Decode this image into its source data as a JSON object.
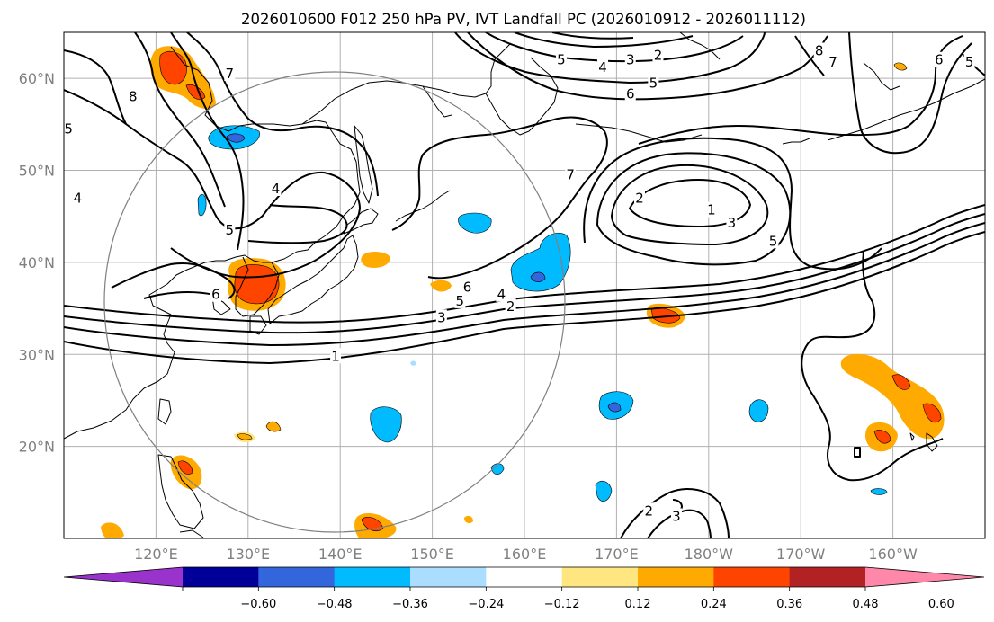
{
  "title": "2026010600 F012 250 hPa PV, IVT Landfall PC (2026010912 - 2026011112)",
  "lat_labels": [
    {
      "lat": 60,
      "text": "60°N"
    },
    {
      "lat": 50,
      "text": "50°N"
    },
    {
      "lat": 40,
      "text": "40°N"
    },
    {
      "lat": 30,
      "text": "30°N"
    },
    {
      "lat": 20,
      "text": "20°N"
    }
  ],
  "lon_labels": [
    {
      "lon": 120,
      "text": "120°E"
    },
    {
      "lon": 130,
      "text": "130°E"
    },
    {
      "lon": 140,
      "text": "140°E"
    },
    {
      "lon": 150,
      "text": "150°E"
    },
    {
      "lon": 160,
      "text": "160°E"
    },
    {
      "lon": 170,
      "text": "170°E"
    },
    {
      "lon": 180,
      "text": "180°W"
    },
    {
      "lon": 190,
      "text": "170°W"
    },
    {
      "lon": 200,
      "text": "160°W"
    }
  ],
  "extent": {
    "lon_min": 110,
    "lon_max": 210,
    "lat_min": 10,
    "lat_max": 65
  },
  "colorbar": {
    "colors": [
      "#9933cc",
      "#000099",
      "#3366dd",
      "#00bbff",
      "#aaddff",
      "#ffffff",
      "#ffe680",
      "#ffaa00",
      "#ff4400",
      "#b22222",
      "#ff88aa"
    ],
    "tick_labels": [
      "−0.60",
      "−0.48",
      "−0.36",
      "−0.24",
      "−0.12",
      "0.12",
      "0.24",
      "0.36",
      "0.48",
      "0.60"
    ]
  },
  "pv_contour_labels": [
    {
      "text": "8",
      "lon": 117.5,
      "lat": 58
    },
    {
      "text": "7",
      "lon": 128,
      "lat": 60.5
    },
    {
      "text": "5",
      "lon": 110.5,
      "lat": 54.5
    },
    {
      "text": "4",
      "lon": 111.5,
      "lat": 47
    },
    {
      "text": "4",
      "lon": 133,
      "lat": 48
    },
    {
      "text": "5",
      "lon": 128,
      "lat": 43.5
    },
    {
      "text": "6",
      "lon": 126.5,
      "lat": 36.5
    },
    {
      "text": "1",
      "lon": 139.5,
      "lat": 29.8
    },
    {
      "text": "3",
      "lon": 151,
      "lat": 34
    },
    {
      "text": "5",
      "lon": 153,
      "lat": 35.8
    },
    {
      "text": "6",
      "lon": 153.8,
      "lat": 37.3
    },
    {
      "text": "4",
      "lon": 157.5,
      "lat": 36.5
    },
    {
      "text": "2",
      "lon": 158.5,
      "lat": 35.2
    },
    {
      "text": "7",
      "lon": 165,
      "lat": 49.5
    },
    {
      "text": "2",
      "lon": 172.5,
      "lat": 47
    },
    {
      "text": "1",
      "lon": 180.3,
      "lat": 45.7
    },
    {
      "text": "3",
      "lon": 182.5,
      "lat": 44.3
    },
    {
      "text": "5",
      "lon": 187,
      "lat": 42.3
    },
    {
      "text": "5",
      "lon": 164,
      "lat": 62
    },
    {
      "text": "4",
      "lon": 168.5,
      "lat": 61.2
    },
    {
      "text": "3",
      "lon": 171.5,
      "lat": 62
    },
    {
      "text": "2",
      "lon": 174.5,
      "lat": 62.5
    },
    {
      "text": "5",
      "lon": 174,
      "lat": 59.5
    },
    {
      "text": "6",
      "lon": 171.5,
      "lat": 58.3
    },
    {
      "text": "8",
      "lon": 192,
      "lat": 63
    },
    {
      "text": "7",
      "lon": 193.5,
      "lat": 61.8
    },
    {
      "text": "6",
      "lon": 205,
      "lat": 62
    },
    {
      "text": "5",
      "lon": 208.3,
      "lat": 61.8
    },
    {
      "text": "2",
      "lon": 173.5,
      "lat": 13
    },
    {
      "text": "3",
      "lon": 176.5,
      "lat": 12.4
    }
  ]
}
